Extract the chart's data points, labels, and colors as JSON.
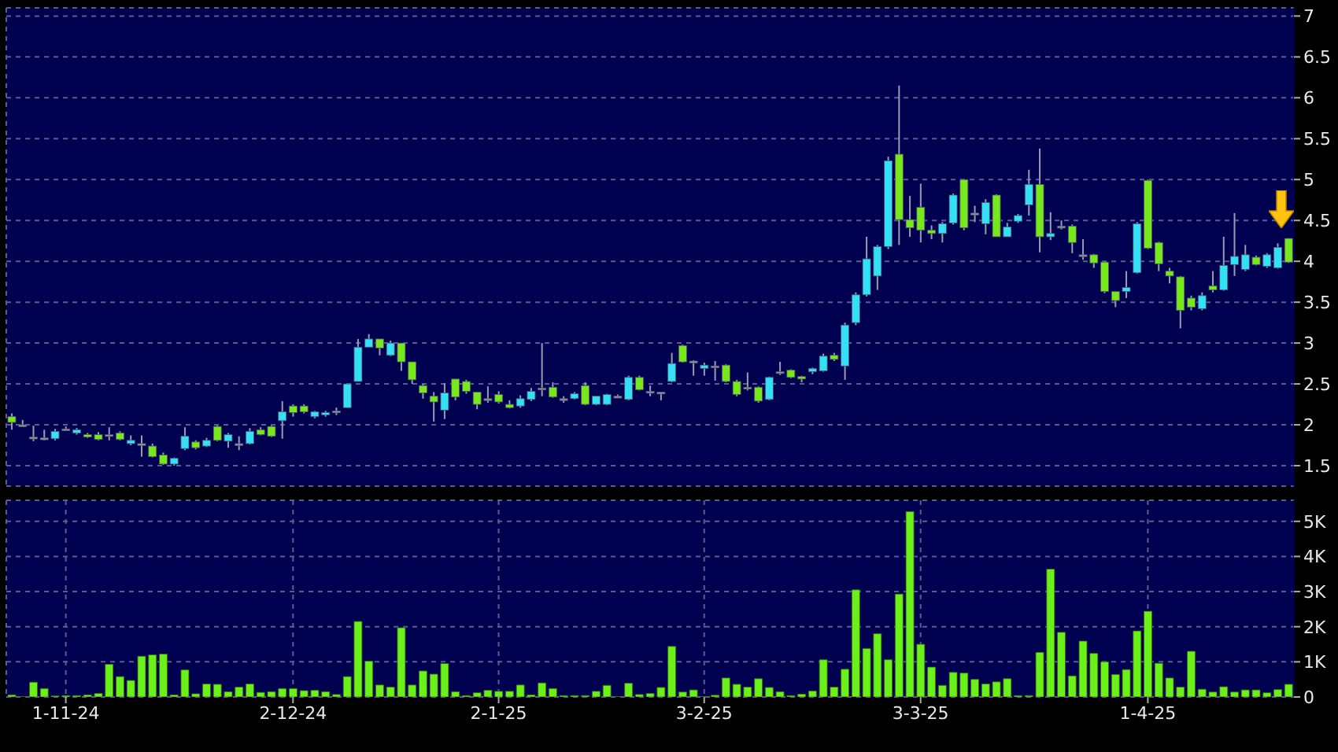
{
  "chart_data": [
    {
      "type": "candlestick",
      "categories": [
        null,
        null,
        null,
        null,
        null,
        null,
        null,
        null,
        null,
        null,
        null,
        null,
        null,
        null,
        null,
        null,
        null,
        null,
        null,
        null,
        null,
        null,
        null,
        null,
        null,
        null,
        null,
        null,
        null,
        null,
        null,
        null,
        null,
        null,
        null,
        null,
        null,
        null,
        null,
        null,
        null,
        null,
        null,
        null,
        null,
        null,
        null,
        null,
        null,
        null,
        null,
        null,
        null,
        null,
        null,
        null,
        null,
        null,
        null,
        null,
        null,
        null,
        null,
        null,
        null,
        null,
        null,
        null,
        null,
        null,
        null,
        null,
        null,
        null,
        null,
        null,
        null,
        null,
        null,
        null,
        null,
        null,
        null,
        null,
        null,
        null,
        null,
        null,
        null,
        null,
        null,
        null,
        null,
        null,
        null,
        null,
        null,
        null,
        null,
        null,
        null,
        null,
        null,
        null,
        null,
        null,
        null,
        null,
        null,
        null,
        null,
        null,
        null,
        null,
        null,
        null,
        null,
        null,
        null
      ],
      "ohlc": [
        [
          2.1,
          2.14,
          1.94,
          2.03
        ],
        [
          2.0,
          2.06,
          2.0,
          2.0
        ],
        [
          1.85,
          1.99,
          1.8,
          1.85
        ],
        [
          1.84,
          1.94,
          1.81,
          1.84
        ],
        [
          1.83,
          1.95,
          1.81,
          1.92
        ],
        [
          1.95,
          1.98,
          1.93,
          1.95
        ],
        [
          1.9,
          1.96,
          1.88,
          1.94
        ],
        [
          1.88,
          1.9,
          1.84,
          1.85
        ],
        [
          1.88,
          1.91,
          1.81,
          1.82
        ],
        [
          1.88,
          1.97,
          1.81,
          1.88
        ],
        [
          1.9,
          1.92,
          1.81,
          1.82
        ],
        [
          1.77,
          1.87,
          1.75,
          1.81
        ],
        [
          1.77,
          1.87,
          1.61,
          1.77
        ],
        [
          1.74,
          1.77,
          1.6,
          1.61
        ],
        [
          1.63,
          1.66,
          1.51,
          1.52
        ],
        [
          1.52,
          1.6,
          1.5,
          1.59
        ],
        [
          1.71,
          1.97,
          1.69,
          1.86
        ],
        [
          1.79,
          1.81,
          1.7,
          1.72
        ],
        [
          1.74,
          1.84,
          1.73,
          1.81
        ],
        [
          1.98,
          1.99,
          1.8,
          1.81
        ],
        [
          1.8,
          1.9,
          1.72,
          1.88
        ],
        [
          1.77,
          1.86,
          1.69,
          1.77
        ],
        [
          1.77,
          1.96,
          1.76,
          1.92
        ],
        [
          1.94,
          1.97,
          1.87,
          1.88
        ],
        [
          1.98,
          1.99,
          1.85,
          1.86
        ],
        [
          2.05,
          2.29,
          1.83,
          2.16
        ],
        [
          2.23,
          2.25,
          2.1,
          2.15
        ],
        [
          2.23,
          2.25,
          2.14,
          2.16
        ],
        [
          2.1,
          2.17,
          2.08,
          2.16
        ],
        [
          2.12,
          2.17,
          2.1,
          2.15
        ],
        [
          2.17,
          2.21,
          2.12,
          2.17
        ],
        [
          2.21,
          2.5,
          2.21,
          2.5
        ],
        [
          2.53,
          3.05,
          2.53,
          2.95
        ],
        [
          2.95,
          3.11,
          2.95,
          3.05
        ],
        [
          3.05,
          3.05,
          2.85,
          2.94
        ],
        [
          2.85,
          3.03,
          2.84,
          3.0
        ],
        [
          3.0,
          3.0,
          2.66,
          2.77
        ],
        [
          2.77,
          2.77,
          2.5,
          2.55
        ],
        [
          2.48,
          2.5,
          2.32,
          2.39
        ],
        [
          2.35,
          2.4,
          2.04,
          2.28
        ],
        [
          2.18,
          2.51,
          2.07,
          2.39
        ],
        [
          2.56,
          2.56,
          2.3,
          2.34
        ],
        [
          2.53,
          2.55,
          2.38,
          2.41
        ],
        [
          2.4,
          2.4,
          2.19,
          2.25
        ],
        [
          2.32,
          2.47,
          2.27,
          2.32
        ],
        [
          2.37,
          2.41,
          2.26,
          2.28
        ],
        [
          2.25,
          2.3,
          2.2,
          2.21
        ],
        [
          2.23,
          2.36,
          2.21,
          2.32
        ],
        [
          2.31,
          2.45,
          2.29,
          2.41
        ],
        [
          2.45,
          3.0,
          2.35,
          2.45
        ],
        [
          2.46,
          2.52,
          2.33,
          2.34
        ],
        [
          2.32,
          2.35,
          2.27,
          2.32
        ],
        [
          2.32,
          2.4,
          2.31,
          2.38
        ],
        [
          2.48,
          2.52,
          2.24,
          2.25
        ],
        [
          2.25,
          2.35,
          2.24,
          2.35
        ],
        [
          2.25,
          2.38,
          2.24,
          2.37
        ],
        [
          2.35,
          2.37,
          2.33,
          2.35
        ],
        [
          2.31,
          2.6,
          2.3,
          2.58
        ],
        [
          2.58,
          2.6,
          2.42,
          2.43
        ],
        [
          2.41,
          2.48,
          2.35,
          2.41
        ],
        [
          2.4,
          2.4,
          2.3,
          2.4
        ],
        [
          2.53,
          2.88,
          2.52,
          2.75
        ],
        [
          2.97,
          2.98,
          2.76,
          2.77
        ],
        [
          2.78,
          2.79,
          2.6,
          2.78
        ],
        [
          2.69,
          2.76,
          2.6,
          2.73
        ],
        [
          2.72,
          2.78,
          2.54,
          2.72
        ],
        [
          2.73,
          2.74,
          2.52,
          2.53
        ],
        [
          2.53,
          2.55,
          2.35,
          2.37
        ],
        [
          2.46,
          2.64,
          2.42,
          2.46
        ],
        [
          2.46,
          2.47,
          2.27,
          2.29
        ],
        [
          2.31,
          2.59,
          2.3,
          2.58
        ],
        [
          2.65,
          2.77,
          2.61,
          2.65
        ],
        [
          2.67,
          2.68,
          2.57,
          2.58
        ],
        [
          2.59,
          2.6,
          2.52,
          2.56
        ],
        [
          2.65,
          2.7,
          2.62,
          2.69
        ],
        [
          2.66,
          2.87,
          2.65,
          2.84
        ],
        [
          2.85,
          2.88,
          2.78,
          2.8
        ],
        [
          2.72,
          3.25,
          2.55,
          3.22
        ],
        [
          3.25,
          3.62,
          3.22,
          3.59
        ],
        [
          3.59,
          4.3,
          3.57,
          4.03
        ],
        [
          3.82,
          4.2,
          3.65,
          4.18
        ],
        [
          4.18,
          5.28,
          4.15,
          5.23
        ],
        [
          5.31,
          6.15,
          4.2,
          4.51
        ],
        [
          4.51,
          4.8,
          4.3,
          4.41
        ],
        [
          4.66,
          4.95,
          4.23,
          4.38
        ],
        [
          4.38,
          4.44,
          4.27,
          4.34
        ],
        [
          4.34,
          4.48,
          4.23,
          4.46
        ],
        [
          4.47,
          4.83,
          4.45,
          4.81
        ],
        [
          5.0,
          5.0,
          4.38,
          4.41
        ],
        [
          4.59,
          4.68,
          4.48,
          4.59
        ],
        [
          4.46,
          4.76,
          4.33,
          4.72
        ],
        [
          4.81,
          4.82,
          4.3,
          4.3
        ],
        [
          4.3,
          4.47,
          4.3,
          4.42
        ],
        [
          4.49,
          4.58,
          4.47,
          4.56
        ],
        [
          4.69,
          5.12,
          4.56,
          4.94
        ],
        [
          4.94,
          5.38,
          4.11,
          4.3
        ],
        [
          4.3,
          4.6,
          4.26,
          4.34
        ],
        [
          4.43,
          4.5,
          4.39,
          4.43
        ],
        [
          4.43,
          4.45,
          4.1,
          4.23
        ],
        [
          4.08,
          4.27,
          4.02,
          4.08
        ],
        [
          4.08,
          4.09,
          3.92,
          3.98
        ],
        [
          3.99,
          4.0,
          3.61,
          3.63
        ],
        [
          3.63,
          3.63,
          3.44,
          3.52
        ],
        [
          3.63,
          3.88,
          3.55,
          3.68
        ],
        [
          3.86,
          4.48,
          3.85,
          4.46
        ],
        [
          4.99,
          5.0,
          4.15,
          4.16
        ],
        [
          4.23,
          4.24,
          3.88,
          3.97
        ],
        [
          3.88,
          3.92,
          3.73,
          3.82
        ],
        [
          3.81,
          3.82,
          3.18,
          3.4
        ],
        [
          3.55,
          3.58,
          3.4,
          3.44
        ],
        [
          3.42,
          3.62,
          3.4,
          3.58
        ],
        [
          3.7,
          3.88,
          3.62,
          3.65
        ],
        [
          3.65,
          4.3,
          3.64,
          3.95
        ],
        [
          3.96,
          4.59,
          3.82,
          4.06
        ],
        [
          3.9,
          4.2,
          3.88,
          4.08
        ],
        [
          4.05,
          4.07,
          3.95,
          3.96
        ],
        [
          3.94,
          4.1,
          3.92,
          4.08
        ],
        [
          3.92,
          4.22,
          3.91,
          4.17
        ],
        [
          4.28,
          4.28,
          3.98,
          3.99
        ]
      ],
      "colors": [
        "#77e81c",
        "#9898a8",
        "#9898a8",
        "#9898a8",
        "#33e0f5",
        "#9898a8",
        "#33e0f5",
        "#77e81c",
        "#77e81c",
        "#9898a8",
        "#77e81c",
        "#33e0f5",
        "#9898a8",
        "#77e81c",
        "#77e81c",
        "#33e0f5",
        "#33e0f5",
        "#77e81c",
        "#33e0f5",
        "#77e81c",
        "#33e0f5",
        "#9898a8",
        "#33e0f5",
        "#77e81c",
        "#77e81c",
        "#33e0f5",
        "#77e81c",
        "#77e81c",
        "#33e0f5",
        "#33e0f5",
        "#9898a8",
        "#33e0f5",
        "#33e0f5",
        "#33e0f5",
        "#77e81c",
        "#33e0f5",
        "#77e81c",
        "#77e81c",
        "#77e81c",
        "#77e81c",
        "#33e0f5",
        "#77e81c",
        "#77e81c",
        "#77e81c",
        "#9898a8",
        "#77e81c",
        "#77e81c",
        "#33e0f5",
        "#33e0f5",
        "#9898a8",
        "#77e81c",
        "#9898a8",
        "#33e0f5",
        "#77e81c",
        "#33e0f5",
        "#33e0f5",
        "#9898a8",
        "#33e0f5",
        "#77e81c",
        "#9898a8",
        "#9898a8",
        "#33e0f5",
        "#77e81c",
        "#9898a8",
        "#33e0f5",
        "#9898a8",
        "#77e81c",
        "#77e81c",
        "#9898a8",
        "#77e81c",
        "#33e0f5",
        "#9898a8",
        "#77e81c",
        "#77e81c",
        "#33e0f5",
        "#33e0f5",
        "#77e81c",
        "#33e0f5",
        "#33e0f5",
        "#33e0f5",
        "#33e0f5",
        "#33e0f5",
        "#77e81c",
        "#77e81c",
        "#77e81c",
        "#77e81c",
        "#33e0f5",
        "#33e0f5",
        "#77e81c",
        "#9898a8",
        "#33e0f5",
        "#77e81c",
        "#33e0f5",
        "#33e0f5",
        "#33e0f5",
        "#77e81c",
        "#33e0f5",
        "#9898a8",
        "#77e81c",
        "#9898a8",
        "#77e81c",
        "#77e81c",
        "#77e81c",
        "#33e0f5",
        "#33e0f5",
        "#77e81c",
        "#77e81c",
        "#77e81c",
        "#77e81c",
        "#77e81c",
        "#33e0f5",
        "#77e81c",
        "#33e0f5",
        "#33e0f5",
        "#33e0f5",
        "#77e81c",
        "#33e0f5",
        "#33e0f5",
        "#77e81c"
      ],
      "ylim": [
        1.25,
        7.1
      ],
      "yticks": [
        1.5,
        2,
        2.5,
        3,
        3.5,
        4,
        4.5,
        5,
        5.5,
        6,
        6.5,
        7
      ],
      "grid": true,
      "tick_labels": "y"
    },
    {
      "type": "bar",
      "categories": [
        null,
        null,
        null,
        null,
        null,
        "1-11-24",
        null,
        null,
        null,
        null,
        null,
        null,
        null,
        null,
        null,
        null,
        null,
        null,
        null,
        null,
        null,
        null,
        null,
        null,
        null,
        null,
        "2-12-24",
        null,
        null,
        null,
        null,
        null,
        null,
        null,
        null,
        null,
        null,
        null,
        null,
        null,
        null,
        null,
        null,
        null,
        null,
        "2-1-25",
        null,
        null,
        null,
        null,
        null,
        null,
        null,
        null,
        null,
        null,
        null,
        null,
        null,
        null,
        null,
        null,
        null,
        null,
        "3-2-25",
        null,
        null,
        null,
        null,
        null,
        null,
        null,
        null,
        null,
        null,
        null,
        null,
        null,
        null,
        null,
        null,
        null,
        null,
        null,
        "3-3-25",
        null,
        null,
        null,
        null,
        null,
        null,
        null,
        null,
        null,
        null,
        null,
        null,
        null,
        null,
        null,
        null,
        null,
        null,
        null,
        null,
        "1-4-25",
        null,
        null,
        null,
        null,
        null,
        null,
        null,
        null,
        null,
        null,
        null,
        null,
        null
      ],
      "values": [
        0.06,
        0.01,
        0.42,
        0.24,
        0.03,
        0.04,
        0.04,
        0.06,
        0.1,
        0.93,
        0.58,
        0.47,
        1.16,
        1.2,
        1.22,
        0.06,
        0.77,
        0.09,
        0.37,
        0.36,
        0.15,
        0.28,
        0.37,
        0.13,
        0.15,
        0.24,
        0.24,
        0.18,
        0.19,
        0.15,
        0.07,
        0.58,
        2.15,
        1.02,
        0.34,
        0.28,
        1.97,
        0.34,
        0.74,
        0.65,
        0.95,
        0.15,
        0.04,
        0.12,
        0.19,
        0.16,
        0.16,
        0.34,
        0.06,
        0.4,
        0.24,
        0.04,
        0.04,
        0.04,
        0.16,
        0.33,
        0.01,
        0.39,
        0.07,
        0.1,
        0.27,
        1.44,
        0.14,
        0.2,
        0.01,
        0.05,
        0.54,
        0.36,
        0.28,
        0.52,
        0.27,
        0.15,
        0.04,
        0.08,
        0.17,
        1.06,
        0.28,
        0.79,
        3.05,
        1.38,
        1.8,
        1.06,
        2.93,
        5.28,
        1.5,
        0.85,
        0.33,
        0.7,
        0.68,
        0.5,
        0.37,
        0.43,
        0.52,
        0.04,
        0.04,
        1.27,
        3.64,
        1.84,
        0.6,
        1.59,
        1.24,
        1.0,
        0.64,
        0.78,
        1.88,
        2.44,
        0.96,
        0.54,
        0.28,
        1.3,
        0.22,
        0.14,
        0.29,
        0.14,
        0.2,
        0.2,
        0.12,
        0.21,
        0.36
      ],
      "color": "#6cf01a",
      "ylim": [
        0,
        5.6
      ],
      "yticks": [
        0,
        {
          "value": 1,
          "label": "1K"
        },
        {
          "value": 2,
          "label": "2K"
        },
        {
          "value": 3,
          "label": "3K"
        },
        {
          "value": 4,
          "label": "4K"
        },
        {
          "value": 5,
          "label": "5K"
        }
      ],
      "grid": true
    }
  ]
}
